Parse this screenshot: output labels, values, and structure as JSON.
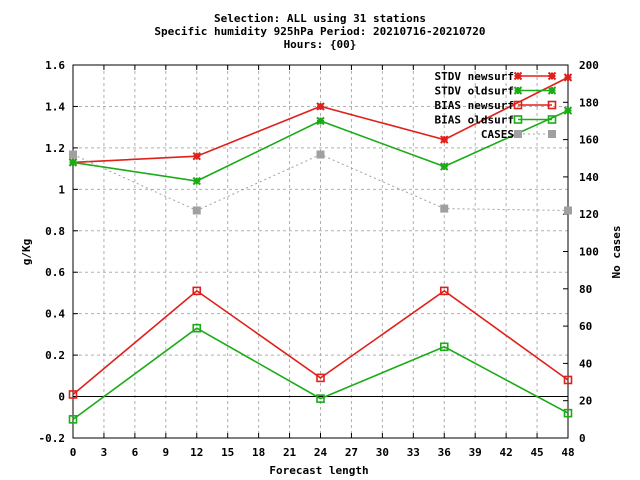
{
  "header": {
    "title_line1": "Selection: ALL using    31 stations",
    "title_line2": "Specific humidity 925hPa   Period: 20210716-20210720",
    "title_line3": "Hours: {00}"
  },
  "colors": {
    "newsurf": "#e0201b",
    "oldsurf": "#1aab16",
    "cases": "#a0a0a0",
    "grid": "#b0b0b0",
    "zero_line": "#000000"
  },
  "chart_data": {
    "type": "line",
    "xlabel": "Forecast length",
    "ylabel": "g/Kg",
    "y2label": "No cases",
    "xlim": [
      0,
      48
    ],
    "ylim": [
      -0.2,
      1.6
    ],
    "y2lim": [
      0,
      200
    ],
    "xticks": [
      "0",
      "3",
      "6",
      "9",
      "12",
      "15",
      "18",
      "21",
      "24",
      "27",
      "30",
      "33",
      "36",
      "39",
      "42",
      "45",
      "48"
    ],
    "yticks": [
      "-0.2",
      "0",
      "0.2",
      "0.4",
      "0.6",
      "0.8",
      "1",
      "1.2",
      "1.4",
      "1.6"
    ],
    "y2ticks": [
      "0",
      "20",
      "40",
      "60",
      "80",
      "100",
      "120",
      "140",
      "160",
      "180",
      "200"
    ],
    "grid": true,
    "legend_position": "top-right",
    "x": [
      0,
      12,
      24,
      36,
      48
    ],
    "series": [
      {
        "name": "STDV newsurf",
        "axis": "y",
        "marker": "x-star",
        "color_key": "newsurf",
        "dashed": false,
        "values": [
          1.13,
          1.16,
          1.4,
          1.24,
          1.54
        ]
      },
      {
        "name": "STDV oldsurf",
        "axis": "y",
        "marker": "x-star",
        "color_key": "oldsurf",
        "dashed": false,
        "values": [
          1.13,
          1.04,
          1.33,
          1.11,
          1.38
        ]
      },
      {
        "name": "BIAS newsurf",
        "axis": "y",
        "marker": "square",
        "color_key": "newsurf",
        "dashed": false,
        "values": [
          0.01,
          0.51,
          0.09,
          0.51,
          0.08
        ]
      },
      {
        "name": "BIAS oldsurf",
        "axis": "y",
        "marker": "square",
        "color_key": "oldsurf",
        "dashed": false,
        "values": [
          -0.11,
          0.33,
          -0.01,
          0.24,
          -0.08
        ]
      },
      {
        "name": "CASES",
        "axis": "y2",
        "marker": "filled-square",
        "color_key": "cases",
        "dashed": true,
        "values": [
          152,
          122,
          152,
          123,
          122
        ]
      }
    ]
  }
}
